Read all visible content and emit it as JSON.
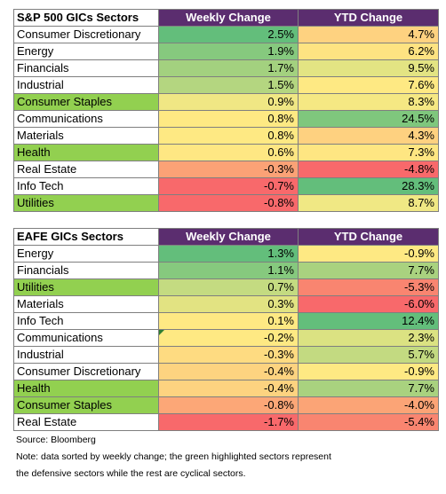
{
  "tables": [
    {
      "headers": [
        "S&P 500 GICs Sectors",
        "Weekly Change",
        "YTD Change"
      ],
      "rows": [
        {
          "sector": "Consumer Discretionary",
          "weekly": "2.5%",
          "ytd": "4.7%",
          "defensive": false,
          "weekly_color": "#63be7b",
          "ytd_color": "#fed280"
        },
        {
          "sector": "Energy",
          "weekly": "1.9%",
          "ytd": "6.2%",
          "defensive": false,
          "weekly_color": "#86c97e",
          "ytd_color": "#fee382"
        },
        {
          "sector": "Financials",
          "weekly": "1.7%",
          "ytd": "9.5%",
          "defensive": false,
          "weekly_color": "#a3d17f",
          "ytd_color": "#e3e483"
        },
        {
          "sector": "Industrial",
          "weekly": "1.5%",
          "ytd": "7.6%",
          "defensive": false,
          "weekly_color": "#b4d680",
          "ytd_color": "#fee983"
        },
        {
          "sector": "Consumer Staples",
          "weekly": "0.9%",
          "ytd": "8.3%",
          "defensive": true,
          "weekly_color": "#f0e784",
          "ytd_color": "#f5e883"
        },
        {
          "sector": "Communications",
          "weekly": "0.8%",
          "ytd": "24.5%",
          "defensive": false,
          "weekly_color": "#fee983",
          "ytd_color": "#7fc77d"
        },
        {
          "sector": "Materials",
          "weekly": "0.8%",
          "ytd": "4.3%",
          "defensive": false,
          "weekly_color": "#fee983",
          "ytd_color": "#fed180"
        },
        {
          "sector": "Health",
          "weekly": "0.6%",
          "ytd": "7.3%",
          "defensive": true,
          "weekly_color": "#fee783",
          "ytd_color": "#fee682"
        },
        {
          "sector": "Real Estate",
          "weekly": "-0.3%",
          "ytd": "-4.8%",
          "defensive": false,
          "weekly_color": "#fba276",
          "ytd_color": "#f8696b"
        },
        {
          "sector": "Info Tech",
          "weekly": "-0.7%",
          "ytd": "28.3%",
          "defensive": false,
          "weekly_color": "#f8696b",
          "ytd_color": "#63be7b"
        },
        {
          "sector": "Utilities",
          "weekly": "-0.8%",
          "ytd": "8.7%",
          "defensive": true,
          "weekly_color": "#f8696b",
          "ytd_color": "#f0e884"
        }
      ]
    },
    {
      "headers": [
        "EAFE GICs Sectors",
        "Weekly Change",
        "YTD Change"
      ],
      "rows": [
        {
          "sector": "Energy",
          "weekly": "1.3%",
          "ytd": "-0.9%",
          "defensive": false,
          "weekly_color": "#63be7b",
          "ytd_color": "#fee983"
        },
        {
          "sector": "Financials",
          "weekly": "1.1%",
          "ytd": "7.7%",
          "defensive": false,
          "weekly_color": "#86c97e",
          "ytd_color": "#a9d27f"
        },
        {
          "sector": "Utilities",
          "weekly": "0.7%",
          "ytd": "-5.3%",
          "defensive": true,
          "weekly_color": "#c4db81",
          "ytd_color": "#f98570"
        },
        {
          "sector": "Materials",
          "weekly": "0.3%",
          "ytd": "-6.0%",
          "defensive": false,
          "weekly_color": "#e2e382",
          "ytd_color": "#f8696b"
        },
        {
          "sector": "Info Tech",
          "weekly": "0.1%",
          "ytd": "12.4%",
          "defensive": false,
          "weekly_color": "#fee983",
          "ytd_color": "#63be7b"
        },
        {
          "sector": "Communications",
          "weekly": "-0.2%",
          "ytd": "2.3%",
          "defensive": false,
          "weekly_color": "#fee983",
          "ytd_color": "#dbe282"
        },
        {
          "sector": "Industrial",
          "weekly": "-0.3%",
          "ytd": "5.7%",
          "defensive": false,
          "weekly_color": "#fedb81",
          "ytd_color": "#c3da81"
        },
        {
          "sector": "Consumer Discretionary",
          "weekly": "-0.4%",
          "ytd": "-0.9%",
          "defensive": false,
          "weekly_color": "#fdd380",
          "ytd_color": "#fee983"
        },
        {
          "sector": "Health",
          "weekly": "-0.4%",
          "ytd": "7.7%",
          "defensive": true,
          "weekly_color": "#fdd380",
          "ytd_color": "#a9d27f"
        },
        {
          "sector": "Consumer Staples",
          "weekly": "-0.8%",
          "ytd": "-4.0%",
          "defensive": true,
          "weekly_color": "#fca777",
          "ytd_color": "#fba476"
        },
        {
          "sector": "Real Estate",
          "weekly": "-1.7%",
          "ytd": "-5.4%",
          "defensive": false,
          "weekly_color": "#f8696b",
          "ytd_color": "#f98570"
        }
      ]
    }
  ],
  "notes": {
    "source": "Source: Bloomberg",
    "line1": "Note: data sorted by weekly change; the green highlighted sectors represent",
    "line2": "the defensive sectors while the rest are cyclical sectors."
  },
  "colors": {
    "header_bg": "#5b2d6f",
    "defensive_bg": "#92d050"
  }
}
